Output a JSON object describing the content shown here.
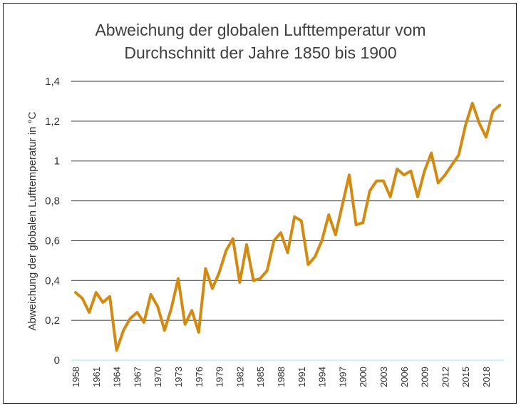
{
  "chart_data": {
    "type": "line",
    "title_line1": "Abweichung der globalen Lufttemperatur vom",
    "title_line2": "Durchschnitt der Jahre 1850 bis 1900",
    "ylabel": "Abweichung der globalen Lufttemperatur in °C",
    "xlabel": "",
    "ylim": [
      0,
      1.4
    ],
    "yticks": [
      0,
      0.2,
      0.4,
      0.6,
      0.8,
      1.0,
      1.2,
      1.4
    ],
    "ytick_labels": [
      "0",
      "0,2",
      "0,4",
      "0,6",
      "0,8",
      "1",
      "1,2",
      "1,4"
    ],
    "xtick_labels": [
      "1958",
      "1961",
      "1964",
      "1967",
      "1970",
      "1973",
      "1976",
      "1979",
      "1982",
      "1985",
      "1988",
      "1991",
      "1994",
      "1997",
      "2000",
      "2003",
      "2006",
      "2009",
      "2012",
      "2015",
      "2018"
    ],
    "grid": true,
    "line_color": "#D48A10",
    "series": [
      {
        "x": [
          1958,
          1959,
          1960,
          1961,
          1962,
          1963,
          1964,
          1965,
          1966,
          1967,
          1968,
          1969,
          1970,
          1971,
          1972,
          1973,
          1974,
          1975,
          1976,
          1977,
          1978,
          1979,
          1980,
          1981,
          1982,
          1983,
          1984,
          1985,
          1986,
          1987,
          1988,
          1989,
          1990,
          1991,
          1992,
          1993,
          1994,
          1995,
          1996,
          1997,
          1998,
          1999,
          2000,
          2001,
          2002,
          2003,
          2004,
          2005,
          2006,
          2007,
          2008,
          2009,
          2010,
          2011,
          2012,
          2013,
          2014,
          2015,
          2016,
          2017,
          2018,
          2019,
          2020
        ],
        "values": [
          0.34,
          0.31,
          0.24,
          0.34,
          0.29,
          0.32,
          0.05,
          0.15,
          0.21,
          0.24,
          0.19,
          0.33,
          0.27,
          0.15,
          0.26,
          0.41,
          0.18,
          0.25,
          0.14,
          0.46,
          0.36,
          0.44,
          0.55,
          0.61,
          0.39,
          0.58,
          0.4,
          0.41,
          0.45,
          0.6,
          0.64,
          0.54,
          0.72,
          0.7,
          0.48,
          0.52,
          0.6,
          0.73,
          0.63,
          0.78,
          0.93,
          0.68,
          0.69,
          0.85,
          0.9,
          0.9,
          0.82,
          0.96,
          0.93,
          0.95,
          0.82,
          0.95,
          1.04,
          0.89,
          0.93,
          0.98,
          1.03,
          1.18,
          1.29,
          1.19,
          1.12,
          1.25,
          1.28
        ]
      }
    ]
  }
}
